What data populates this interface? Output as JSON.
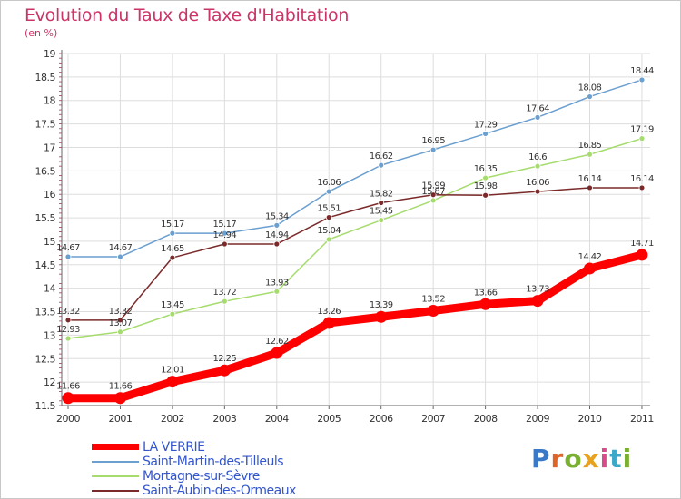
{
  "title": "Evolution du Taux de Taxe d'Habitation",
  "unit": "(en %)",
  "logo": "Proxiti",
  "chart_data": {
    "type": "line",
    "title": "Evolution du Taux de Taxe d'Habitation",
    "ylabel": "(en %)",
    "xlabel": "",
    "x": [
      "2000",
      "2001",
      "2002",
      "2003",
      "2004",
      "2005",
      "2006",
      "2007",
      "2008",
      "2009",
      "2010",
      "2011"
    ],
    "ylim": [
      11.5,
      19
    ],
    "yticks": [
      "11.5",
      "12",
      "12.5",
      "13",
      "13.5",
      "14",
      "14.5",
      "15",
      "15.5",
      "16",
      "16.5",
      "17",
      "17.5",
      "18",
      "18.5",
      "19"
    ],
    "grid": true,
    "legend": "bottom-left",
    "series": [
      {
        "name": "LA VERRIE",
        "color": "#ff0000",
        "values": [
          11.66,
          11.66,
          12.01,
          12.25,
          12.62,
          13.26,
          13.39,
          13.52,
          13.66,
          13.73,
          14.42,
          14.71
        ],
        "labels": [
          "11.66",
          "11.66",
          "12.01",
          "12.25",
          "12.62",
          "13.26",
          "13.39",
          "13.52",
          "13.66",
          "13.73",
          "14.42",
          "14.71"
        ]
      },
      {
        "name": "Saint-Martin-des-Tilleuls",
        "color": "#6a9fd0",
        "values": [
          14.67,
          14.67,
          15.17,
          15.17,
          15.34,
          16.06,
          16.62,
          16.95,
          17.29,
          17.64,
          18.08,
          18.44
        ],
        "labels": [
          "14.67",
          "14.67",
          "15.17",
          "15.17",
          "15.34",
          "16.06",
          "16.62",
          "16.95",
          "17.29",
          "17.64",
          "18.08",
          "18.44"
        ]
      },
      {
        "name": "Mortagne-sur-Sèvre",
        "color": "#a6dc6e",
        "values": [
          12.93,
          13.07,
          13.45,
          13.72,
          13.93,
          15.04,
          15.45,
          15.87,
          16.35,
          16.6,
          16.85,
          17.19
        ],
        "labels": [
          "12.93",
          "13.07",
          "13.45",
          "13.72",
          "13.93",
          "15.04",
          "15.45",
          "15.87",
          "16.35",
          "16.6",
          "16.85",
          "17.19"
        ]
      },
      {
        "name": "Saint-Aubin-des-Ormeaux",
        "color": "#7a2a2a",
        "values": [
          13.32,
          13.32,
          14.65,
          14.94,
          14.94,
          15.51,
          15.82,
          15.99,
          15.98,
          16.06,
          16.14,
          16.14
        ],
        "labels": [
          "13.32",
          "13.32",
          "14.65",
          "14.94",
          "14.94",
          "15.51",
          "15.82",
          "15.99",
          "15.98",
          "16.06",
          "16.14",
          "16.14"
        ]
      }
    ]
  }
}
